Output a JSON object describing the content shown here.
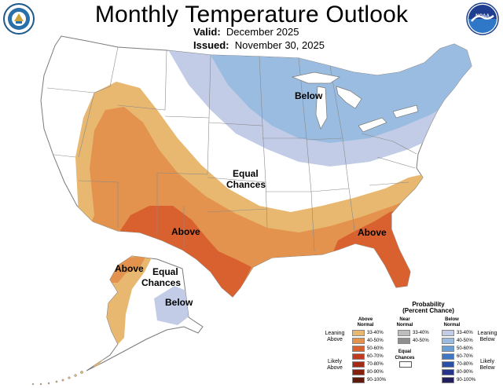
{
  "header": {
    "title": "Monthly Temperature Outlook",
    "valid_label": "Valid:",
    "valid_value": "December 2025",
    "issued_label": "Issued:",
    "issued_value": "November 30, 2025"
  },
  "logos": {
    "left": "us-department-of-commerce-seal",
    "right": "noaa-logo",
    "right_text": "NOAA"
  },
  "map_labels": {
    "below_north": "Below",
    "equal_chances_center_1": "Equal",
    "equal_chances_center_2": "Chances",
    "above_southwest": "Above",
    "above_southeast": "Above",
    "alaska_above": "Above",
    "alaska_equal_1": "Equal",
    "alaska_equal_2": "Chances",
    "alaska_below": "Below"
  },
  "colors": {
    "above_33_40": "#E9B870",
    "above_40_50": "#E3934E",
    "above_50_60": "#D9602F",
    "below_33_40": "#C2CCE6",
    "below_40_50": "#99BCE0",
    "land": "#ffffff",
    "border": "#8a8a8a"
  },
  "legend": {
    "title_1": "Probability",
    "title_2": "(Percent Chance)",
    "col_above_1": "Above",
    "col_above_2": "Normal",
    "col_near_1": "Near",
    "col_near_2": "Normal",
    "col_below_1": "Below",
    "col_below_2": "Normal",
    "leaning_above_1": "Leaning",
    "leaning_above_2": "Above",
    "likely_above_1": "Likely",
    "likely_above_2": "Above",
    "leaning_below_1": "Leaning",
    "leaning_below_2": "Below",
    "likely_below_1": "Likely",
    "likely_below_2": "Below",
    "equal_chances_1": "Equal",
    "equal_chances_2": "Chances",
    "above_ranges": [
      "33-40%",
      "40-50%",
      "50-60%",
      "60-70%",
      "70-80%",
      "80-90%",
      "90-100%"
    ],
    "above_colors": [
      "#E9B870",
      "#E3934E",
      "#D9602F",
      "#C13A20",
      "#A52A16",
      "#86200F",
      "#5E1A0A"
    ],
    "near_ranges": [
      "33-40%",
      "40-50%"
    ],
    "near_colors": [
      "#BDBDBD",
      "#8F8F8F"
    ],
    "below_ranges": [
      "33-40%",
      "40-50%",
      "50-60%",
      "60-70%",
      "70-80%",
      "80-90%",
      "90-100%"
    ],
    "below_colors": [
      "#C2CCE6",
      "#99BCE0",
      "#6A9FD6",
      "#3E78C4",
      "#2A4FA8",
      "#26348C",
      "#211F5E"
    ]
  }
}
